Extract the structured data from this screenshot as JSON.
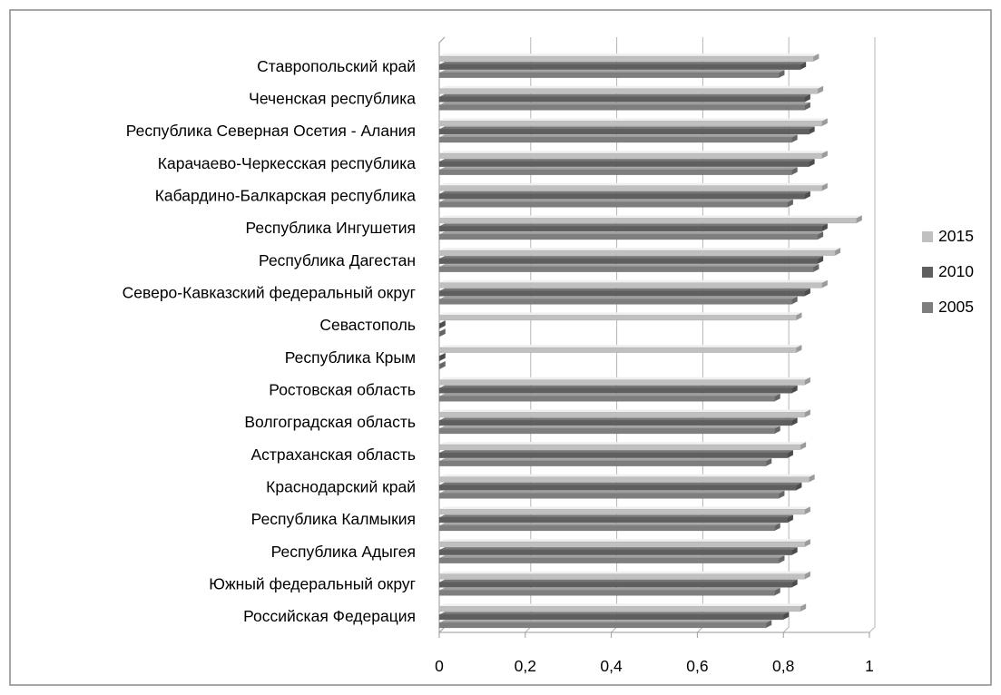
{
  "chart_data": {
    "type": "bar",
    "orientation": "horizontal",
    "categories": [
      "Российская Федерация",
      "Южный федеральный округ",
      "Республика Адыгея",
      "Республика Калмыкия",
      "Краснодарский край",
      "Астраханская область",
      "Волгоградская область",
      "Ростовская область",
      "Республика Крым",
      "Севастополь",
      "Северо-Кавказский федеральный округ",
      "Республика Дагестан",
      "Республика Ингушетия",
      "Кабардино-Балкарская  республика",
      "Карачаево-Черкесская  республика",
      "Республика Северная Осетия - Алания",
      "Чеченская республика",
      "Ставропольский край"
    ],
    "series": [
      {
        "name": "2015",
        "color": "#c0c0c0",
        "values": [
          0.84,
          0.85,
          0.85,
          0.85,
          0.86,
          0.84,
          0.85,
          0.85,
          0.83,
          0.83,
          0.89,
          0.92,
          0.97,
          0.89,
          0.89,
          0.89,
          0.88,
          0.87
        ]
      },
      {
        "name": "2010",
        "color": "#5f5f5f",
        "values": [
          0.8,
          0.82,
          0.82,
          0.81,
          0.83,
          0.81,
          0.82,
          0.82,
          0.0,
          0.0,
          0.85,
          0.88,
          0.89,
          0.85,
          0.86,
          0.86,
          0.85,
          0.84
        ]
      },
      {
        "name": "2005",
        "color": "#7e7e7e",
        "values": [
          0.76,
          0.78,
          0.79,
          0.78,
          0.79,
          0.76,
          0.78,
          0.78,
          0.0,
          0.0,
          0.82,
          0.87,
          0.88,
          0.81,
          0.82,
          0.82,
          0.85,
          0.79
        ]
      }
    ],
    "xlim": [
      0,
      1
    ],
    "xticks": [
      "0",
      "0,2",
      "0,4",
      "0,6",
      "0,8",
      "1"
    ],
    "grid": true,
    "legend_position": "right"
  }
}
